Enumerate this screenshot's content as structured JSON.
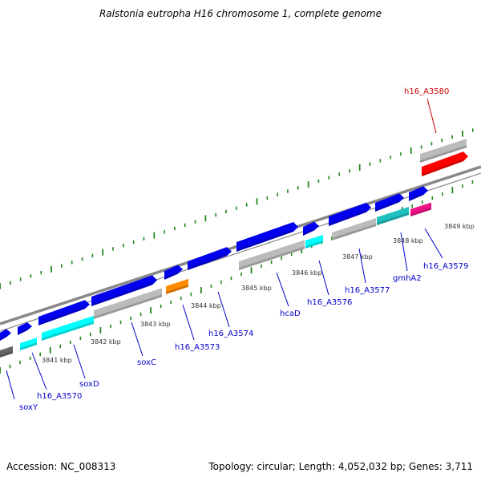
{
  "title": "Ralstonia eutropha H16 chromosome 1, complete genome",
  "footer": {
    "accession": "Accession: NC_008313",
    "summary": "Topology: circular; Length: 4,052,032 bp; Genes: 3,711"
  },
  "colors": {
    "cds": "#0000ee",
    "rna": "#00ffff",
    "pseudo": "#bbbbbb",
    "orange": "#ff8c00",
    "red": "#ff0000",
    "magenta": "#ee1188",
    "teal": "#20c0c0",
    "dark": "#666666",
    "tick": "#228822",
    "label_blue": "#0000cc",
    "label_red": "#cc0000"
  },
  "scale": {
    "unit": "kbp",
    "labels": [
      "3841 kbp",
      "3842 kbp",
      "3843 kbp",
      "3844 kbp",
      "3845 kbp",
      "3846 kbp",
      "3847 kbp",
      "3848 kbp",
      "3849 kbp"
    ]
  },
  "gene_labels": [
    "soxY",
    "h16_A3570",
    "soxD",
    "soxC",
    "h16_A3573",
    "h16_A3574",
    "hcaD",
    "h16_A3576",
    "h16_A3577",
    "gmhA2",
    "h16_A3579",
    "h16_A3580"
  ]
}
